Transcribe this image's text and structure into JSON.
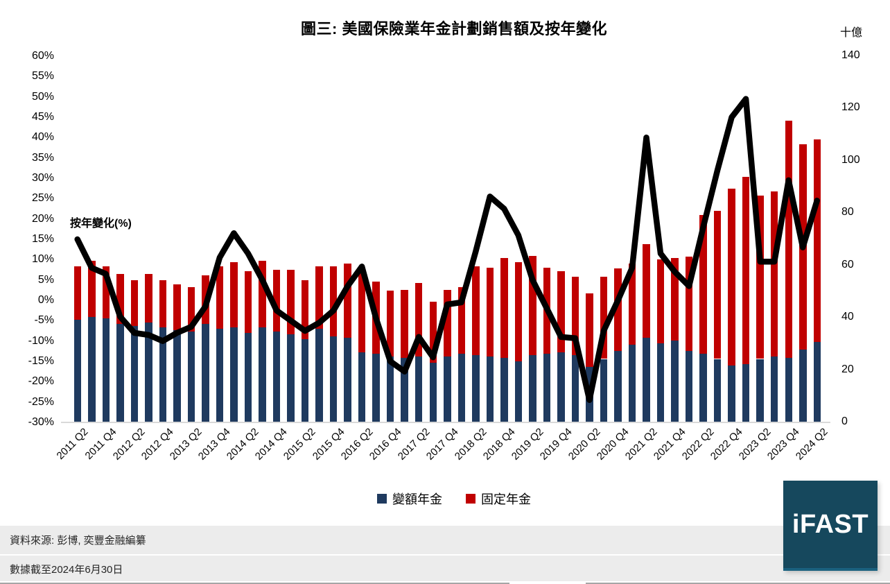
{
  "title": "圖三: 美國保險業年金計劃銷售額及按年變化",
  "right_axis_unit": "十億",
  "line_annotation": "按年變化(%)",
  "legend": [
    {
      "label": "變額年金",
      "color": "#1F3A5F"
    },
    {
      "label": "固定年金",
      "color": "#C00000"
    }
  ],
  "footer": {
    "source": "資料來源: 彭博, 奕豐金融編纂",
    "as_of": "數據截至2024年6月30日"
  },
  "logo": {
    "text": "iFAST"
  },
  "colors": {
    "variable_annuity": "#1F3A5F",
    "fixed_annuity": "#C00000",
    "line": "#000000",
    "footer_bg": "#ECECEC",
    "logo_bg": "#16485D",
    "axis_line": "#D9D9D9"
  },
  "chart_data": {
    "type": "bar",
    "subtype": "stacked-bars-with-line",
    "stacked": true,
    "grid": false,
    "legend_position": "bottom",
    "categories": [
      "2011 Q2",
      "2011 Q3",
      "2011 Q4",
      "2012 Q1",
      "2012 Q2",
      "2012 Q3",
      "2012 Q4",
      "2013 Q1",
      "2013 Q2",
      "2013 Q3",
      "2013 Q4",
      "2014 Q1",
      "2014 Q2",
      "2014 Q3",
      "2014 Q4",
      "2015 Q1",
      "2015 Q2",
      "2015 Q3",
      "2015 Q4",
      "2016 Q1",
      "2016 Q2",
      "2016 Q3",
      "2016 Q4",
      "2017 Q1",
      "2017 Q2",
      "2017 Q3",
      "2017 Q4",
      "2018 Q1",
      "2018 Q2",
      "2018 Q3",
      "2018 Q4",
      "2019 Q1",
      "2019 Q2",
      "2019 Q3",
      "2019 Q4",
      "2020 Q1",
      "2020 Q2",
      "2020 Q3",
      "2020 Q4",
      "2021 Q1",
      "2021 Q2",
      "2021 Q3",
      "2021 Q4",
      "2022 Q1",
      "2022 Q2",
      "2022 Q3",
      "2022 Q4",
      "2023 Q1",
      "2023 Q2",
      "2023 Q3",
      "2023 Q4",
      "2024 Q1",
      "2024 Q2"
    ],
    "x_tick_labels_shown": [
      "2011 Q2",
      "2011 Q4",
      "2012 Q2",
      "2012 Q4",
      "2013 Q2",
      "2013 Q4",
      "2014 Q2",
      "2014 Q4",
      "2015 Q2",
      "2015 Q4",
      "2016 Q2",
      "2016 Q4",
      "2017 Q2",
      "2017 Q4",
      "2018 Q2",
      "2018 Q4",
      "2019 Q2",
      "2019 Q4",
      "2020 Q2",
      "2020 Q4",
      "2021 Q2",
      "2021 Q4",
      "2022 Q2",
      "2022 Q4",
      "2023 Q2",
      "2023 Q4",
      "2024 Q2"
    ],
    "series": [
      {
        "name": "變額年金",
        "type": "bar",
        "color": "#1F3A5F",
        "axis": "right",
        "unit": "十億",
        "values": [
          39,
          40,
          39.5,
          37.5,
          36.5,
          38,
          36,
          35,
          34.5,
          37.5,
          35.5,
          36,
          34,
          36,
          34.5,
          33.5,
          31.5,
          35.5,
          32.5,
          32,
          26.5,
          26,
          25,
          24.5,
          25,
          22.5,
          25,
          26,
          25.5,
          25,
          24.5,
          23,
          25.5,
          26,
          26.5,
          25.5,
          21,
          24,
          27,
          29.5,
          32,
          30,
          31,
          27,
          26,
          24,
          21.5,
          22,
          24,
          25,
          24.5,
          27.5,
          30.5
        ]
      },
      {
        "name": "固定年金",
        "type": "bar",
        "color": "#C00000",
        "axis": "right",
        "unit": "十億",
        "values": [
          20.5,
          21.5,
          20,
          19,
          17.5,
          18.5,
          18,
          17.5,
          17,
          18.5,
          24,
          25,
          23.5,
          25.5,
          23.5,
          24.5,
          22.5,
          24,
          27,
          28.5,
          32,
          27.5,
          25,
          26,
          28,
          23.5,
          25.5,
          25.5,
          34,
          34,
          38,
          38,
          38,
          33,
          31,
          30,
          28,
          31.5,
          31.5,
          31,
          36,
          32,
          31.5,
          36,
          53,
          56.5,
          67.5,
          71.5,
          62.5,
          63,
          90.5,
          78.5,
          77.5
        ]
      },
      {
        "name": "按年變化(%)",
        "type": "line",
        "color": "#000000",
        "axis": "left",
        "unit": "%",
        "values": [
          15,
          8,
          6.5,
          -4,
          -8,
          -8.5,
          -10,
          -8,
          -6.5,
          -1.5,
          10.5,
          16.5,
          11.5,
          5,
          -2.5,
          -5,
          -7.5,
          -5.5,
          -2.5,
          3.5,
          8.3,
          -4.5,
          -15,
          -17.5,
          -9,
          -14,
          -1,
          -0.5,
          12,
          25.5,
          22.5,
          16,
          5,
          -2,
          -9,
          -9.3,
          -24.5,
          -7.5,
          0,
          8,
          40,
          11.5,
          7,
          3.5,
          18,
          32,
          45,
          49.5,
          9.5,
          9.5,
          29.5,
          13,
          24.5
        ]
      }
    ],
    "left_axis": {
      "title": "按年變化(%)",
      "min": -30,
      "max": 60,
      "step": 5,
      "ticks": [
        "60%",
        "55%",
        "50%",
        "45%",
        "40%",
        "35%",
        "30%",
        "25%",
        "20%",
        "15%",
        "10%",
        "5%",
        "0%",
        "-5%",
        "-10%",
        "-15%",
        "-20%",
        "-25%",
        "-30%"
      ]
    },
    "right_axis": {
      "title": "十億",
      "min": 0,
      "max": 140,
      "step": 20,
      "ticks": [
        "140",
        "120",
        "100",
        "80",
        "60",
        "40",
        "20",
        "0"
      ]
    }
  }
}
